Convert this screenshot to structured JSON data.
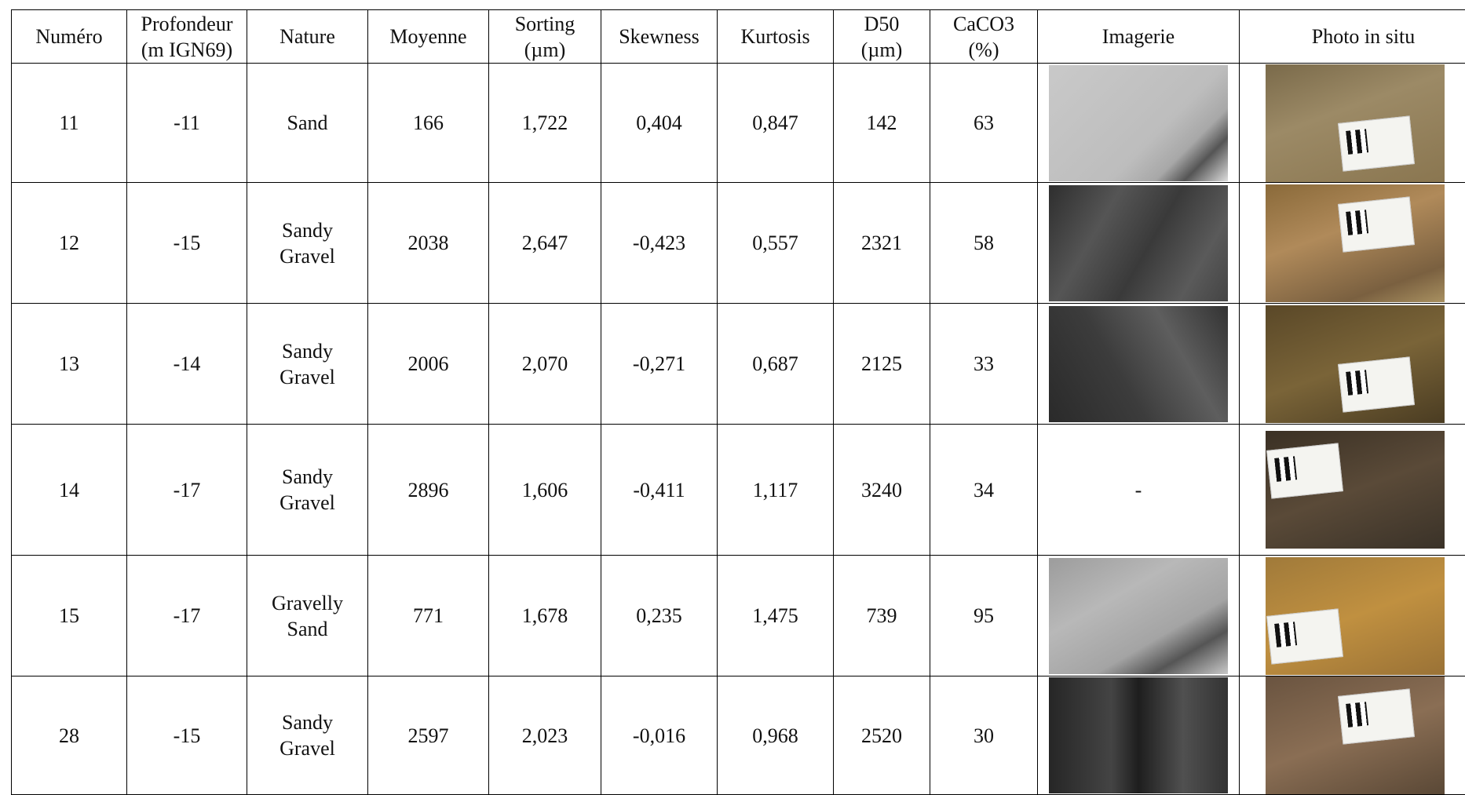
{
  "table": {
    "header": [
      [
        "Numéro"
      ],
      [
        "Profondeur",
        "(m IGN69)"
      ],
      [
        "Nature"
      ],
      [
        "Moyenne"
      ],
      [
        "Sorting",
        "(µm)"
      ],
      [
        "Skewness"
      ],
      [
        "Kurtosis"
      ],
      [
        "D50",
        "(µm)"
      ],
      [
        "CaCO3",
        "(%)"
      ],
      [
        "Imagerie"
      ],
      [
        "Photo in situ"
      ]
    ],
    "rows": [
      {
        "cells": [
          "11",
          "-11",
          [
            "Sand"
          ],
          "166",
          "1,722",
          "0,404",
          "0,847",
          "142",
          "63"
        ]
      },
      {
        "cells": [
          "12",
          "-15",
          [
            "Sandy",
            "Gravel"
          ],
          "2038",
          "2,647",
          "-0,423",
          "0,557",
          "2321",
          "58"
        ]
      },
      {
        "cells": [
          "13",
          "-14",
          [
            "Sandy",
            "Gravel"
          ],
          "2006",
          "2,070",
          "-0,271",
          "0,687",
          "2125",
          "33"
        ]
      },
      {
        "cells": [
          "14",
          "-17",
          [
            "Sandy",
            "Gravel"
          ],
          "2896",
          "1,606",
          "-0,411",
          "1,117",
          "3240",
          "34"
        ],
        "imagerie": "-"
      },
      {
        "cells": [
          "15",
          "-17",
          [
            "Gravelly",
            "Sand"
          ],
          "771",
          "1,678",
          "0,235",
          "1,475",
          "739",
          "95"
        ]
      },
      {
        "cells": [
          "28",
          "-15",
          [
            "Sandy",
            "Gravel"
          ],
          "2597",
          "2,023",
          "-0,016",
          "0,968",
          "2520",
          "30"
        ]
      }
    ]
  }
}
